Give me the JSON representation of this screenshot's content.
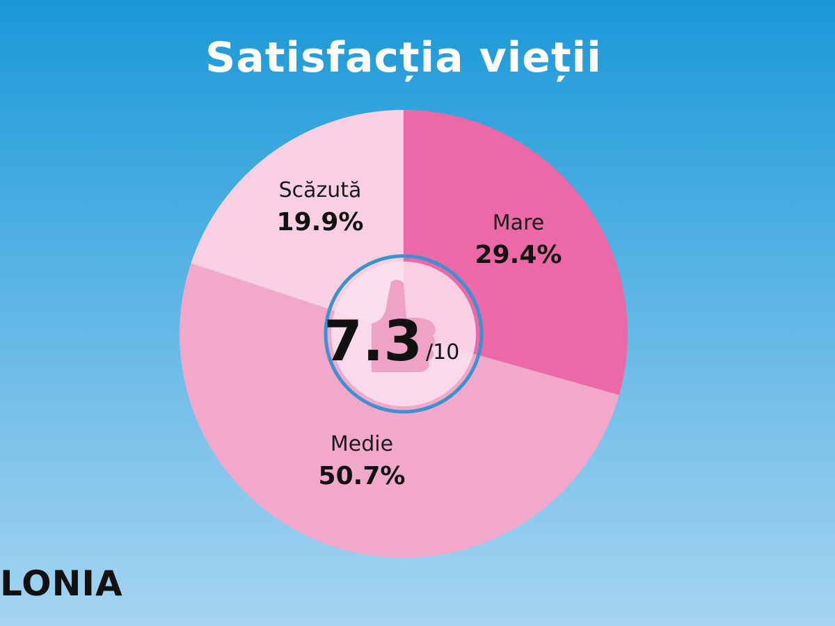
{
  "chart_data": {
    "type": "pie",
    "title": "Satisfacția vieții",
    "slices": [
      {
        "label": "Mare",
        "value": 29.4,
        "value_label": "29.4%",
        "color": "#ec68a6"
      },
      {
        "label": "Medie",
        "value": 50.7,
        "value_label": "50.7%",
        "color": "#f2a8cb"
      },
      {
        "label": "Scăzută",
        "value": 19.9,
        "value_label": "19.9%",
        "color": "#f8d0e2"
      }
    ],
    "center": {
      "score": "7.3",
      "scale": "/10"
    }
  },
  "country_label": "LONIA",
  "colors": {
    "ring_border": "#3a93d0",
    "hub_fill": "#fbe2ee",
    "thumb_icon": "#f0a2c6"
  },
  "icons": {
    "center": "thumbs-up-icon"
  }
}
